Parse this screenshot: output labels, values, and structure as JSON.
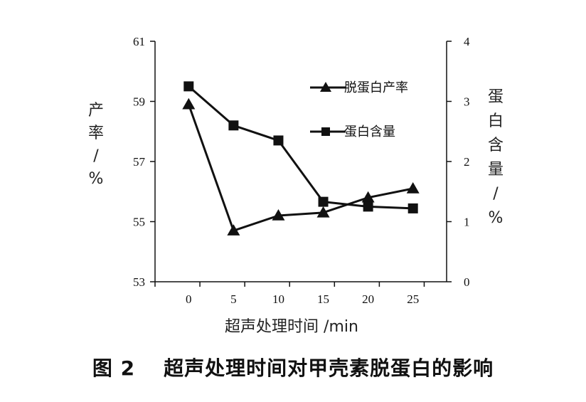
{
  "chart_data": {
    "type": "line",
    "x": [
      0,
      5,
      10,
      15,
      20,
      25
    ],
    "xlabel": "超声处理时间",
    "xunit": "/min",
    "left_axis": {
      "label_chars": [
        "产",
        "率",
        "/",
        "%"
      ],
      "ylim": [
        53,
        61
      ],
      "ticks": [
        53,
        55,
        57,
        59,
        61
      ]
    },
    "right_axis": {
      "label_chars": [
        "蛋",
        "白",
        "含",
        "量",
        "/",
        "%"
      ],
      "ylim": [
        0,
        4
      ],
      "ticks": [
        0,
        1,
        2,
        3,
        4
      ]
    },
    "series": [
      {
        "name": "脱蛋白产率",
        "marker": "triangle",
        "axis": "left",
        "values": [
          58.9,
          54.7,
          55.2,
          55.3,
          55.8,
          56.1
        ]
      },
      {
        "name": "蛋白含量",
        "marker": "square",
        "axis": "right",
        "values": [
          3.25,
          2.6,
          2.35,
          1.33,
          1.25,
          1.22
        ]
      }
    ],
    "legend_position": "top-right",
    "grid": false,
    "color": "#111111"
  },
  "caption": {
    "figure_number": "图 2",
    "text": "超声处理时间对甲壳素脱蛋白的影响"
  }
}
